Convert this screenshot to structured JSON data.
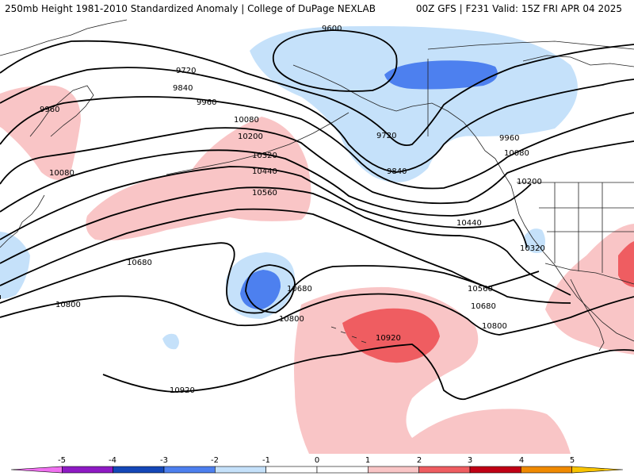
{
  "header": {
    "title_left": "250mb Height 1981-2010 Standardized Anomaly | College of DuPage NEXLAB",
    "title_right": "00Z GFS | F231 Valid: 15Z FRI APR 04 2025"
  },
  "colors": {
    "neg1": "#c5e1fa",
    "neg2": "#4d80ef",
    "pos1": "#f9c5c6",
    "pos2": "#ef5d61",
    "contour": "#000000",
    "coast": "#222222"
  },
  "contours": [
    {
      "value": "9600"
    },
    {
      "value": "9720"
    },
    {
      "value": "9840"
    },
    {
      "value": "9960"
    },
    {
      "value": "10080"
    },
    {
      "value": "10200"
    },
    {
      "value": "10320"
    },
    {
      "value": "10440"
    },
    {
      "value": "10560"
    },
    {
      "value": "10680"
    },
    {
      "value": "10800"
    },
    {
      "value": "10920"
    }
  ],
  "contour_labels": [
    {
      "text": "9600"
    },
    {
      "text": "9720"
    },
    {
      "text": "9840"
    },
    {
      "text": "9960"
    },
    {
      "text": "9960"
    },
    {
      "text": "10080"
    },
    {
      "text": "10080"
    },
    {
      "text": "10200"
    },
    {
      "text": "10320"
    },
    {
      "text": "10440"
    },
    {
      "text": "10560"
    },
    {
      "text": "10680"
    },
    {
      "text": "10800"
    },
    {
      "text": "10920"
    },
    {
      "text": "10920"
    },
    {
      "text": "9720"
    },
    {
      "text": "9840"
    },
    {
      "text": "9960"
    },
    {
      "text": "10080"
    },
    {
      "text": "10200"
    },
    {
      "text": "10320"
    },
    {
      "text": "10440"
    },
    {
      "text": "10560"
    },
    {
      "text": "10680"
    },
    {
      "text": "10800"
    },
    {
      "text": "10680"
    },
    {
      "text": "10800"
    }
  ],
  "colorbar": {
    "ticks": [
      "-5",
      "-4",
      "-3",
      "-2",
      "-1",
      "0",
      "1",
      "2",
      "3",
      "4",
      "5"
    ],
    "bins": [
      {
        "color": "#f070f0"
      },
      {
        "color": "#8e1ac4"
      },
      {
        "color": "#1447b8"
      },
      {
        "color": "#4d80ef"
      },
      {
        "color": "#c5e1fa"
      },
      {
        "color": "#ffffff"
      },
      {
        "color": "#ffffff"
      },
      {
        "color": "#f9c5c6"
      },
      {
        "color": "#ef5d61"
      },
      {
        "color": "#c00015"
      },
      {
        "color": "#f08a00"
      },
      {
        "color": "#f8c400"
      }
    ]
  }
}
